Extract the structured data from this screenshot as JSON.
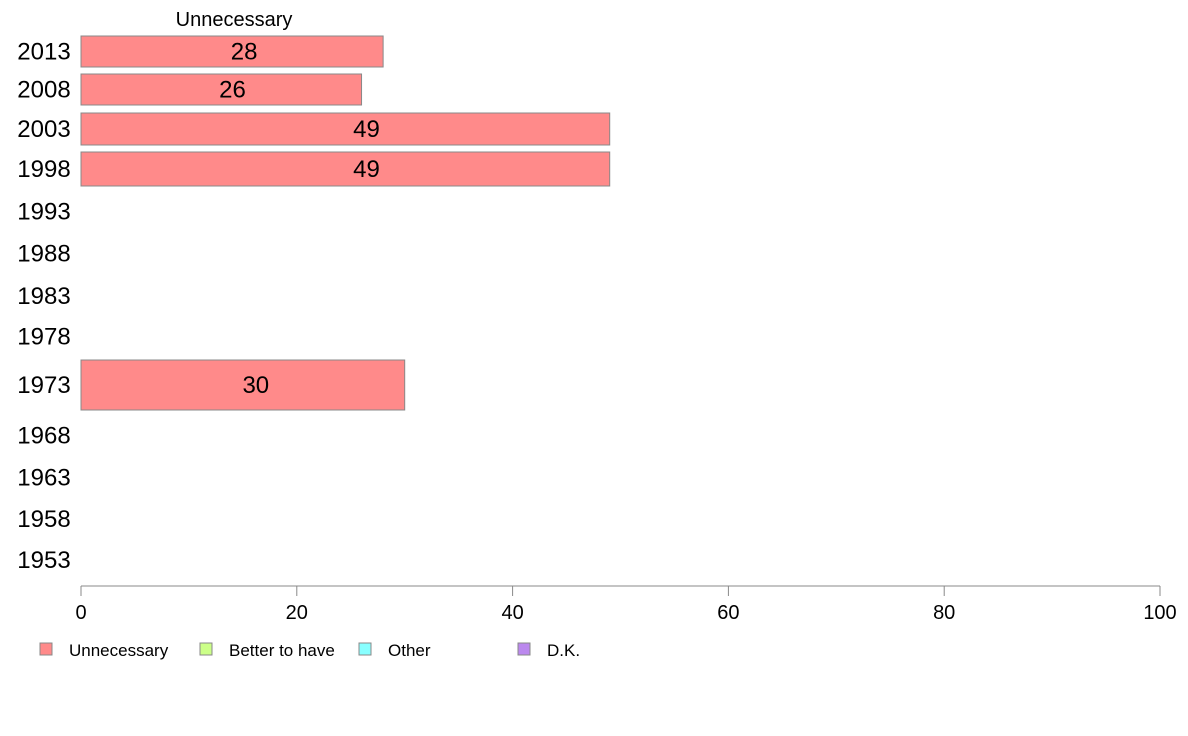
{
  "chart_data": {
    "type": "bar",
    "orientation": "horizontal",
    "series_title": "Unnecessary",
    "categories": [
      "2013",
      "2008",
      "2003",
      "1998",
      "1993",
      "1988",
      "1983",
      "1978",
      "1973",
      "1968",
      "1963",
      "1958",
      "1953"
    ],
    "series": [
      {
        "name": "Unnecessary",
        "values": [
          28,
          26,
          49,
          49,
          null,
          null,
          null,
          null,
          30,
          null,
          null,
          null,
          null
        ]
      }
    ],
    "data_labels": [
      "28",
      "26",
      "49",
      "49",
      "",
      "",
      "",
      "",
      "30",
      "",
      "",
      "",
      ""
    ],
    "xlim": [
      0,
      100
    ],
    "xticks": [
      "0",
      "20",
      "40",
      "60",
      "80",
      "100"
    ],
    "xlabel": "",
    "ylabel": "",
    "grid": false,
    "legend_position": "bottom-left",
    "legend": [
      {
        "label": "Unnecessary",
        "color": "#ff8a8a"
      },
      {
        "label": "Better to have",
        "color": "#ccff88"
      },
      {
        "label": "Other",
        "color": "#88ffff"
      },
      {
        "label": "D.K.",
        "color": "#bb88ee"
      }
    ],
    "colors": {
      "bar": "#ff8a8a",
      "bar_border": "#888888",
      "axis": "#888888"
    }
  }
}
